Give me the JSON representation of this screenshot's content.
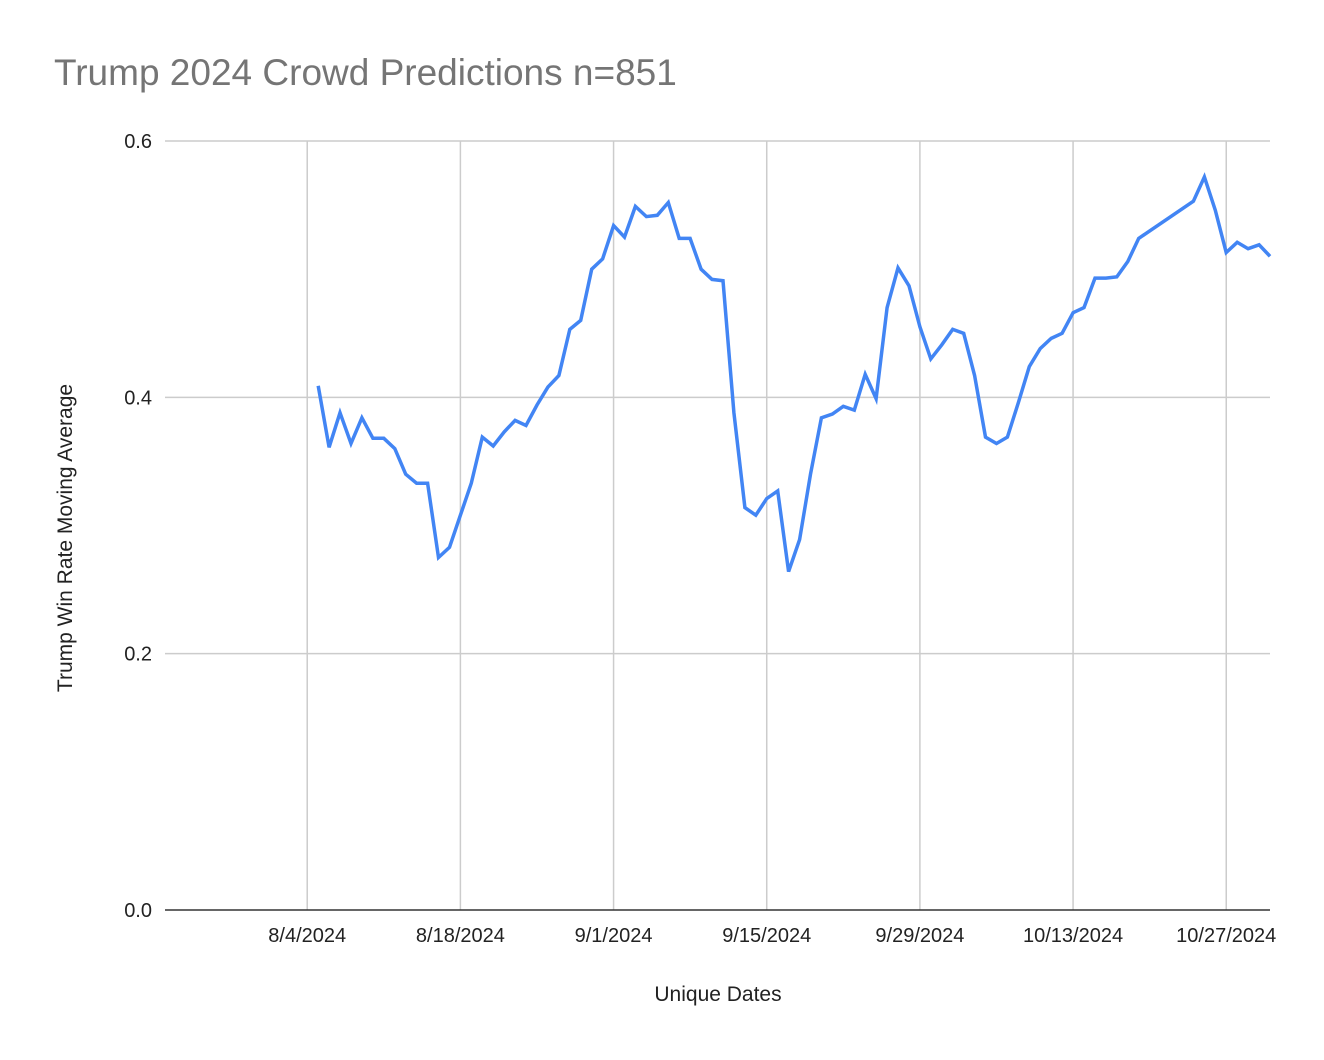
{
  "chart_data": {
    "type": "line",
    "title": "Trump 2024 Crowd Predictions n=851",
    "xlabel": "Unique Dates",
    "ylabel": "Trump Win Rate Moving Average",
    "xlim": [
      "2024-07-22",
      "2024-10-31"
    ],
    "ylim": [
      0,
      0.6
    ],
    "yticks": [
      "0.0",
      "0.2",
      "0.4",
      "0.6"
    ],
    "xticks": [
      {
        "date": "2024-08-04",
        "label": "8/4/2024"
      },
      {
        "date": "2024-08-18",
        "label": "8/18/2024"
      },
      {
        "date": "2024-09-01",
        "label": "9/1/2024"
      },
      {
        "date": "2024-09-15",
        "label": "9/15/2024"
      },
      {
        "date": "2024-09-29",
        "label": "9/29/2024"
      },
      {
        "date": "2024-10-13",
        "label": "10/13/2024"
      },
      {
        "date": "2024-10-27",
        "label": "10/27/2024"
      }
    ],
    "grid": true,
    "legend": "none",
    "color": "#4285F4",
    "series": [
      {
        "x": [
          "2024-08-05",
          "2024-08-06",
          "2024-08-07",
          "2024-08-08",
          "2024-08-09",
          "2024-08-10",
          "2024-08-11",
          "2024-08-12",
          "2024-08-13",
          "2024-08-14",
          "2024-08-15",
          "2024-08-16",
          "2024-08-17",
          "2024-08-18",
          "2024-08-19",
          "2024-08-20",
          "2024-08-21",
          "2024-08-22",
          "2024-08-23",
          "2024-08-24",
          "2024-08-25",
          "2024-08-26",
          "2024-08-27",
          "2024-08-28",
          "2024-08-29",
          "2024-08-30",
          "2024-08-31",
          "2024-09-01",
          "2024-09-02",
          "2024-09-03",
          "2024-09-04",
          "2024-09-05",
          "2024-09-06",
          "2024-09-07",
          "2024-09-08",
          "2024-09-09",
          "2024-09-10",
          "2024-09-11",
          "2024-09-12",
          "2024-09-13",
          "2024-09-14",
          "2024-09-15",
          "2024-09-16",
          "2024-09-17",
          "2024-09-18",
          "2024-09-19",
          "2024-09-20",
          "2024-09-21",
          "2024-09-22",
          "2024-09-23",
          "2024-09-24",
          "2024-09-25",
          "2024-09-26",
          "2024-09-27",
          "2024-09-28",
          "2024-09-29",
          "2024-09-30",
          "2024-10-01",
          "2024-10-02",
          "2024-10-03",
          "2024-10-04",
          "2024-10-05",
          "2024-10-06",
          "2024-10-07",
          "2024-10-08",
          "2024-10-09",
          "2024-10-10",
          "2024-10-11",
          "2024-10-12",
          "2024-10-13",
          "2024-10-14",
          "2024-10-15",
          "2024-10-16",
          "2024-10-17",
          "2024-10-18",
          "2024-10-19",
          "2024-10-24",
          "2024-10-25",
          "2024-10-26",
          "2024-10-27",
          "2024-10-28",
          "2024-10-29",
          "2024-10-30",
          "2024-10-31"
        ],
        "y": [
          0.409,
          0.361,
          0.388,
          0.364,
          0.384,
          0.368,
          0.368,
          0.36,
          0.34,
          0.333,
          0.333,
          0.275,
          0.283,
          0.308,
          0.333,
          0.369,
          0.362,
          0.373,
          0.382,
          0.378,
          0.394,
          0.408,
          0.417,
          0.453,
          0.46,
          0.5,
          0.508,
          0.534,
          0.525,
          0.549,
          0.541,
          0.542,
          0.552,
          0.524,
          0.524,
          0.5,
          0.492,
          0.491,
          0.388,
          0.314,
          0.308,
          0.321,
          0.327,
          0.264,
          0.289,
          0.34,
          0.384,
          0.387,
          0.393,
          0.39,
          0.418,
          0.399,
          0.47,
          0.501,
          0.487,
          0.455,
          0.43,
          0.441,
          0.453,
          0.45,
          0.417,
          0.369,
          0.364,
          0.369,
          0.396,
          0.424,
          0.438,
          0.446,
          0.45,
          0.466,
          0.47,
          0.493,
          0.493,
          0.494,
          0.506,
          0.524,
          0.553,
          0.572,
          0.546,
          0.513,
          0.521,
          0.516,
          0.519,
          0.51
        ]
      }
    ]
  }
}
